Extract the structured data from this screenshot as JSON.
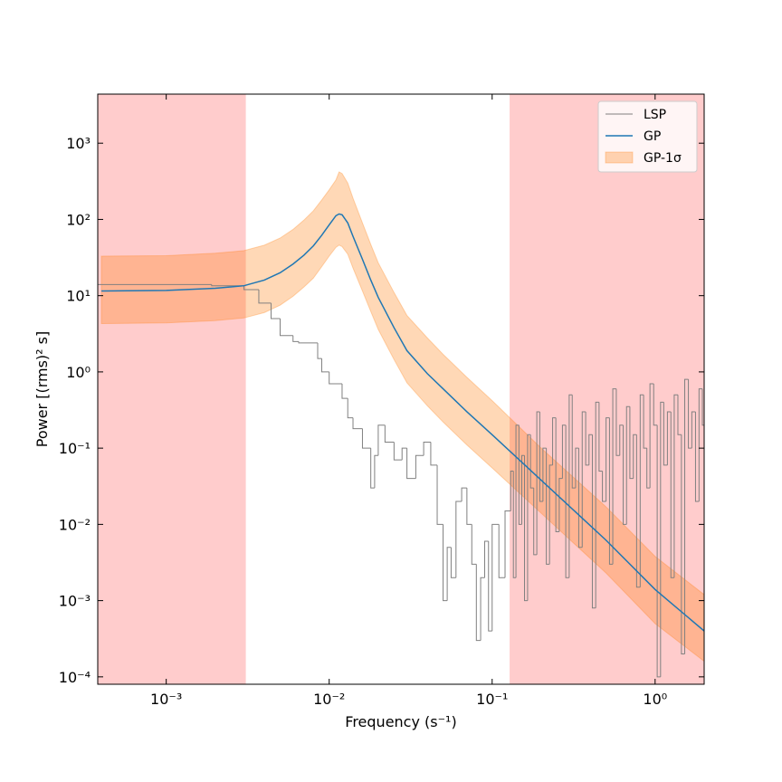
{
  "chart_data": {
    "type": "line",
    "xlabel": "Frequency (s⁻¹)",
    "ylabel": "Power [(rms)² s]",
    "log_x": true,
    "log_y": true,
    "xlim": [
      0.00038,
      2.0
    ],
    "ylim": [
      8e-05,
      4400
    ],
    "xticks": [
      {
        "value": 0.001,
        "label": "10⁻³"
      },
      {
        "value": 0.01,
        "label": "10⁻²"
      },
      {
        "value": 0.1,
        "label": "10⁻¹"
      },
      {
        "value": 1,
        "label": "10⁰"
      }
    ],
    "yticks": [
      {
        "value": 0.0001,
        "label": "10⁻⁴"
      },
      {
        "value": 0.001,
        "label": "10⁻³"
      },
      {
        "value": 0.01,
        "label": "10⁻²"
      },
      {
        "value": 0.1,
        "label": "10⁻¹"
      },
      {
        "value": 1,
        "label": "10⁰"
      },
      {
        "value": 10,
        "label": "10¹"
      },
      {
        "value": 100,
        "label": "10²"
      },
      {
        "value": 1000,
        "label": "10³"
      }
    ],
    "legend": "upper right",
    "shaded_regions": [
      {
        "x0": 0.00038,
        "x1": 0.00308,
        "color": "#ff0000"
      },
      {
        "x0": 0.128,
        "x1": 2.0,
        "color": "#ff0000"
      }
    ],
    "series": [
      {
        "name": "LSP",
        "kind": "step",
        "color": "#808080",
        "x": [
          0.00038,
          0.0019,
          0.003,
          0.0037,
          0.0044,
          0.005,
          0.006,
          0.0065,
          0.0085,
          0.009,
          0.01,
          0.012,
          0.013,
          0.014,
          0.016,
          0.018,
          0.019,
          0.02,
          0.022,
          0.025,
          0.028,
          0.03,
          0.034,
          0.038,
          0.042,
          0.046,
          0.05,
          0.053,
          0.056,
          0.06,
          0.065,
          0.07,
          0.075,
          0.08,
          0.085,
          0.09,
          0.095,
          0.1,
          0.11,
          0.12,
          0.13,
          0.135,
          0.14,
          0.146,
          0.152,
          0.158,
          0.165,
          0.172,
          0.18,
          0.188,
          0.196,
          0.205,
          0.215,
          0.225,
          0.235,
          0.246,
          0.258,
          0.27,
          0.283,
          0.297,
          0.31,
          0.325,
          0.34,
          0.357,
          0.375,
          0.393,
          0.412,
          0.432,
          0.453,
          0.475,
          0.5,
          0.525,
          0.55,
          0.578,
          0.607,
          0.637,
          0.668,
          0.7,
          0.735,
          0.77,
          0.81,
          0.85,
          0.89,
          0.93,
          0.98,
          1.03,
          1.08,
          1.13,
          1.19,
          1.25,
          1.31,
          1.38,
          1.45,
          1.52,
          1.6,
          1.68,
          1.77,
          1.86,
          1.95,
          2.0
        ],
        "values": [
          14,
          13.5,
          12,
          8,
          5,
          3,
          2.5,
          2.4,
          1.5,
          1.0,
          0.7,
          0.45,
          0.25,
          0.18,
          0.1,
          0.03,
          0.08,
          0.2,
          0.12,
          0.07,
          0.1,
          0.04,
          0.08,
          0.12,
          0.06,
          0.01,
          0.001,
          0.005,
          0.002,
          0.02,
          0.03,
          0.01,
          0.003,
          0.0003,
          0.002,
          0.006,
          0.0004,
          0.01,
          0.002,
          0.015,
          0.05,
          0.002,
          0.2,
          0.01,
          0.08,
          0.001,
          0.15,
          0.03,
          0.004,
          0.3,
          0.02,
          0.1,
          0.003,
          0.06,
          0.25,
          0.008,
          0.04,
          0.2,
          0.002,
          0.5,
          0.03,
          0.1,
          0.005,
          0.3,
          0.06,
          0.15,
          0.0008,
          0.4,
          0.05,
          0.02,
          0.25,
          0.003,
          0.6,
          0.08,
          0.2,
          0.01,
          0.35,
          0.04,
          0.15,
          0.0015,
          0.5,
          0.1,
          0.03,
          0.7,
          0.2,
          0.0001,
          0.4,
          0.06,
          0.3,
          0.002,
          0.5,
          0.15,
          0.0002,
          0.8,
          0.1,
          0.3,
          0.02,
          0.6,
          0.2,
          0.1
        ]
      },
      {
        "name": "GP",
        "kind": "line",
        "color": "#1f77b4",
        "x": [
          0.0004,
          0.001,
          0.002,
          0.003,
          0.004,
          0.005,
          0.006,
          0.007,
          0.008,
          0.009,
          0.01,
          0.011,
          0.0115,
          0.012,
          0.013,
          0.014,
          0.016,
          0.018,
          0.02,
          0.025,
          0.03,
          0.04,
          0.05,
          0.07,
          0.1,
          0.2,
          0.5,
          1.0,
          2.0
        ],
        "values": [
          11.5,
          11.7,
          12.5,
          13.5,
          16,
          20,
          26,
          34,
          45,
          62,
          85,
          112,
          118,
          115,
          90,
          60,
          30,
          16,
          9.5,
          3.8,
          1.9,
          0.95,
          0.6,
          0.3,
          0.15,
          0.038,
          0.0062,
          0.0014,
          0.0004
        ]
      },
      {
        "name": "GP-1σ",
        "kind": "band",
        "color": "#ff7f0e",
        "x": [
          0.0004,
          0.001,
          0.002,
          0.003,
          0.004,
          0.005,
          0.006,
          0.007,
          0.008,
          0.009,
          0.01,
          0.011,
          0.0115,
          0.012,
          0.013,
          0.014,
          0.016,
          0.018,
          0.02,
          0.025,
          0.03,
          0.04,
          0.05,
          0.07,
          0.1,
          0.2,
          0.5,
          1.0,
          2.0
        ],
        "lower": [
          4.3,
          4.4,
          4.7,
          5.1,
          6,
          7.5,
          9.8,
          13,
          17,
          24,
          33,
          43,
          46,
          44,
          35,
          23,
          11.5,
          6.2,
          3.6,
          1.45,
          0.72,
          0.36,
          0.22,
          0.11,
          0.055,
          0.014,
          0.0023,
          0.0005,
          0.00016
        ],
        "upper": [
          33,
          33.5,
          36,
          39,
          46,
          57,
          74,
          98,
          130,
          180,
          245,
          330,
          420,
          400,
          300,
          190,
          90,
          47,
          27,
          11,
          5.5,
          2.8,
          1.7,
          0.85,
          0.42,
          0.1,
          0.017,
          0.0038,
          0.0012
        ]
      }
    ]
  }
}
